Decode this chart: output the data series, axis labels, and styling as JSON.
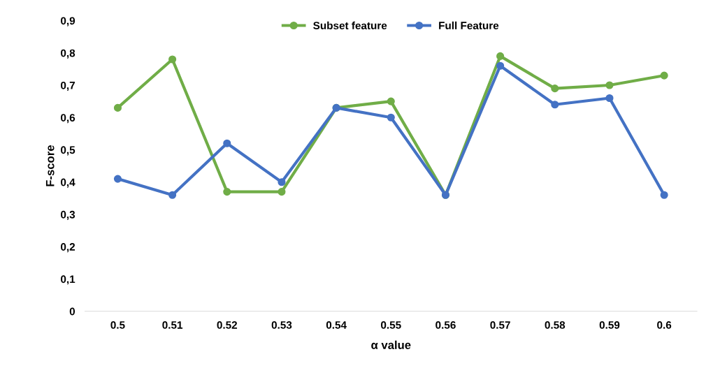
{
  "chart_data": {
    "type": "line",
    "xlabel": "α value",
    "ylabel": "F-score",
    "categories": [
      "0.5",
      "0.51",
      "0.52",
      "0.53",
      "0.54",
      "0.55",
      "0.56",
      "0.57",
      "0.58",
      "0.59",
      "0.6"
    ],
    "series": [
      {
        "name": "Subset feature",
        "color": "#70ad47",
        "values": [
          0.63,
          0.78,
          0.37,
          0.37,
          0.63,
          0.65,
          0.36,
          0.79,
          0.69,
          0.7,
          0.73
        ]
      },
      {
        "name": "Full Feature",
        "color": "#4472c4",
        "values": [
          0.41,
          0.36,
          0.52,
          0.4,
          0.63,
          0.6,
          0.36,
          0.76,
          0.64,
          0.66,
          0.36
        ]
      }
    ],
    "ylim": [
      0,
      0.9
    ],
    "yticks": [
      0,
      {
        "value": 0.1,
        "label": "0,1"
      },
      {
        "value": 0.2,
        "label": "0,2"
      },
      {
        "value": 0.3,
        "label": "0,3"
      },
      {
        "value": 0.4,
        "label": "0,4"
      },
      {
        "value": 0.5,
        "label": "0,5"
      },
      {
        "value": 0.6,
        "label": "0,6"
      },
      {
        "value": 0.7,
        "label": "0,7"
      },
      {
        "value": 0.8,
        "label": "0,8"
      },
      {
        "value": 0.9,
        "label": "0,9"
      }
    ],
    "grid": false,
    "legend": "top",
    "marker": "circle",
    "line_style": "solid"
  }
}
